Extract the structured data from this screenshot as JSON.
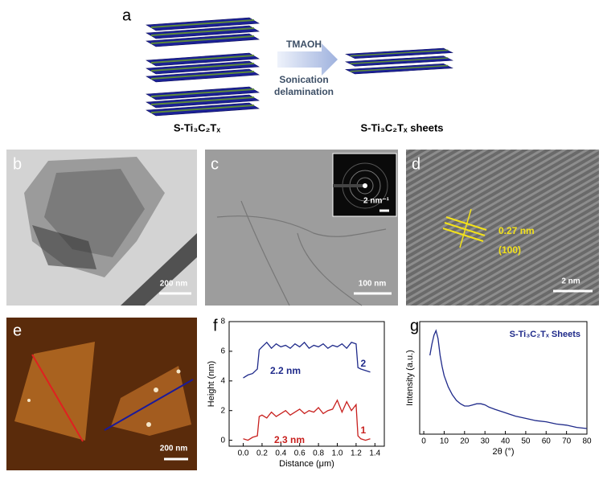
{
  "panels": {
    "a": {
      "label": "a",
      "reagent": "TMAOH",
      "process_1": "Sonication",
      "process_2": "delamination",
      "left_caption": "S-Ti₃C₂Tₓ",
      "right_caption": "S-Ti₃C₂Tₓ sheets"
    },
    "b": {
      "label": "b",
      "scale_bar": "200 nm"
    },
    "c": {
      "label": "c",
      "scale_bar": "100 nm",
      "inset_scale_bar": "2 nm⁻¹"
    },
    "d": {
      "label": "d",
      "scale_bar": "2 nm",
      "spacing": "0.27 nm",
      "plane": "(100)"
    },
    "e": {
      "label": "e",
      "scale_bar": "200 nm"
    }
  },
  "chart_data": [
    {
      "type": "line",
      "panel_label": "f",
      "xlabel": "Distance (μm)",
      "ylabel": "Height (nm)",
      "x": [
        0,
        0.05,
        0.1,
        0.15,
        0.17,
        0.2,
        0.25,
        0.3,
        0.35,
        0.4,
        0.45,
        0.5,
        0.55,
        0.6,
        0.65,
        0.7,
        0.75,
        0.8,
        0.85,
        0.9,
        0.95,
        1.0,
        1.05,
        1.1,
        1.15,
        1.2,
        1.22,
        1.25,
        1.3,
        1.35
      ],
      "series": [
        {
          "name": "2",
          "color": "#1f2a8a",
          "values": [
            4.2,
            4.4,
            4.5,
            4.8,
            6.1,
            6.3,
            6.6,
            6.2,
            6.5,
            6.3,
            6.4,
            6.2,
            6.5,
            6.3,
            6.6,
            6.2,
            6.4,
            6.3,
            6.5,
            6.2,
            6.4,
            6.3,
            6.5,
            6.2,
            6.6,
            6.5,
            4.9,
            4.8,
            4.7,
            4.6
          ]
        },
        {
          "name": "1",
          "color": "#c8201e",
          "values": [
            0.1,
            0,
            0.2,
            0.3,
            1.6,
            1.7,
            1.5,
            1.9,
            1.6,
            1.8,
            2.0,
            1.7,
            1.9,
            2.1,
            1.8,
            2.0,
            1.9,
            2.2,
            1.8,
            2.0,
            2.1,
            2.7,
            1.9,
            2.6,
            2.0,
            2.4,
            0.3,
            0.1,
            0,
            0.1
          ]
        }
      ],
      "annotations": [
        "2.2 nm",
        "2.3 nm"
      ],
      "xlim": [
        -0.15,
        1.5
      ],
      "ylim": [
        -0.4,
        8
      ],
      "xticks": [
        {
          "value": 0,
          "label": "0.0"
        },
        0.2,
        0.4,
        0.6,
        0.8,
        {
          "value": 1,
          "label": "1.0"
        },
        1.2,
        1.4
      ],
      "yticks": [
        0,
        2,
        4,
        6,
        8
      ]
    },
    {
      "type": "line",
      "panel_label": "g",
      "xlabel": "2θ (°)",
      "ylabel": "Intensity (a.u.)",
      "legend": "upper right",
      "x": [
        3,
        4,
        5,
        6,
        7,
        8,
        9,
        10,
        12,
        14,
        16,
        18,
        20,
        22,
        24,
        26,
        28,
        30,
        32,
        35,
        40,
        45,
        50,
        55,
        60,
        65,
        70,
        75,
        80
      ],
      "series": [
        {
          "name": "S-Ti₃C₂Tₓ Sheets",
          "color": "#1f2a8a",
          "values": [
            70,
            80,
            88,
            92,
            85,
            70,
            60,
            52,
            42,
            35,
            30,
            27,
            25,
            25,
            26,
            27,
            27,
            26,
            24,
            22,
            19,
            16,
            14,
            12,
            11,
            9,
            8,
            6,
            5
          ]
        }
      ],
      "xlim": [
        -2,
        80
      ],
      "ylim": [
        0,
        100
      ],
      "xticks": [
        0,
        10,
        20,
        30,
        40,
        50,
        60,
        70,
        80
      ]
    }
  ]
}
